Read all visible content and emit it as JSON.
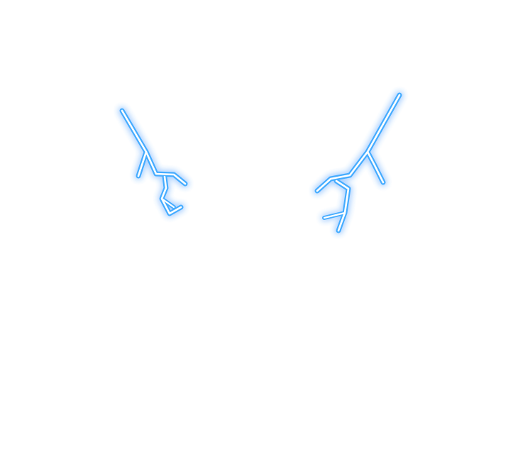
{
  "image": {
    "background_color": "#ffffff",
    "glow_color": "#3aa8ff",
    "core_color": "#ffffff"
  },
  "elements": [
    {
      "semantic": "left-lightning-bolt-icon"
    },
    {
      "semantic": "right-lightning-bolt-icon"
    }
  ]
}
